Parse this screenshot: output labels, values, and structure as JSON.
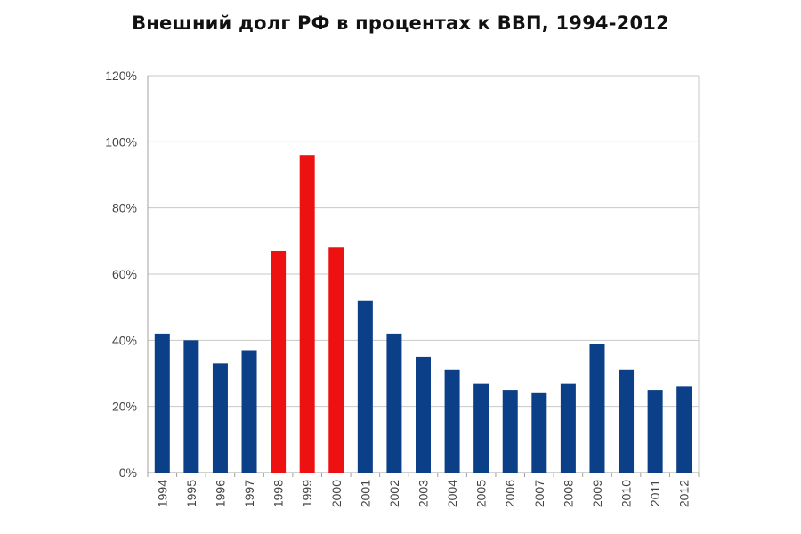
{
  "chart_data": {
    "type": "bar",
    "title": "Внешний долг РФ в процентах к ВВП, 1994-2012",
    "xlabel": "",
    "ylabel": "",
    "categories": [
      "1994",
      "1995",
      "1996",
      "1997",
      "1998",
      "1999",
      "2000",
      "2001",
      "2002",
      "2003",
      "2004",
      "2005",
      "2006",
      "2007",
      "2008",
      "2009",
      "2010",
      "2011",
      "2012"
    ],
    "values": [
      42,
      40,
      33,
      37,
      67,
      96,
      68,
      52,
      42,
      35,
      31,
      27,
      25,
      24,
      27,
      39,
      31,
      25,
      26
    ],
    "highlighted_categories": [
      "1998",
      "1999",
      "2000"
    ],
    "ylim": [
      0,
      120
    ],
    "y_ticks": [
      0,
      20,
      40,
      60,
      80,
      100,
      120
    ],
    "y_tick_labels": [
      "0%",
      "20%",
      "40%",
      "60%",
      "80%",
      "100%",
      "120%"
    ],
    "grid": true,
    "colors": {
      "bar": "#0b3f87",
      "highlight": "#ee1111",
      "grid": "#c8c8c8",
      "axis": "#a0a0a0"
    }
  }
}
